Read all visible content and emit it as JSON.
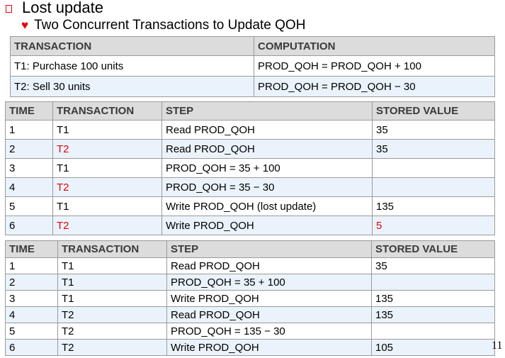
{
  "heading": "Lost update",
  "subheading": "Two Concurrent Transactions to Update QOH",
  "table1": {
    "headers": [
      "TRANSACTION",
      "COMPUTATION"
    ],
    "rows": [
      [
        "T1: Purchase 100 units",
        "PROD_QOH = PROD_QOH + 100"
      ],
      [
        "T2: Sell 30 units",
        "PROD_QOH = PROD_QOH − 30"
      ]
    ]
  },
  "table2": {
    "headers": [
      "TIME",
      "TRANSACTION",
      "STEP",
      "STORED VALUE"
    ],
    "rows": [
      [
        "1",
        "T1",
        "Read PROD_QOH",
        "35"
      ],
      [
        "2",
        "T2",
        "Read PROD_QOH",
        "35"
      ],
      [
        "3",
        "T1",
        "PROD_QOH = 35 + 100",
        ""
      ],
      [
        "4",
        "T2",
        "PROD_QOH = 35 − 30",
        ""
      ],
      [
        "5",
        "T1",
        "Write PROD_QOH (lost update)",
        "135"
      ],
      [
        "6",
        "T2",
        "Write PROD_QOH",
        "5"
      ]
    ]
  },
  "table3": {
    "headers": [
      "TIME",
      "TRANSACTION",
      "STEP",
      "STORED VALUE"
    ],
    "rows": [
      [
        "1",
        "T1",
        "Read PROD_QOH",
        "35"
      ],
      [
        "2",
        "T1",
        "PROD_QOH = 35 + 100",
        ""
      ],
      [
        "3",
        "T1",
        "Write PROD_QOH",
        "135"
      ],
      [
        "4",
        "T2",
        "Read PROD_QOH",
        "135"
      ],
      [
        "5",
        "T2",
        "PROD_QOH = 135 − 30",
        ""
      ],
      [
        "6",
        "T2",
        "Write PROD_QOH",
        "105"
      ]
    ]
  },
  "page_number": "11",
  "colors": {
    "accent": "#e8000b",
    "header_bg": "#dcdcdc",
    "alt_row_bg": "#eaf3fb",
    "border": "#9a9a9a"
  },
  "icons": {
    "heading_bullet": "hollow-square-bullet-icon",
    "subheading_bullet": "heart-bullet-icon"
  }
}
